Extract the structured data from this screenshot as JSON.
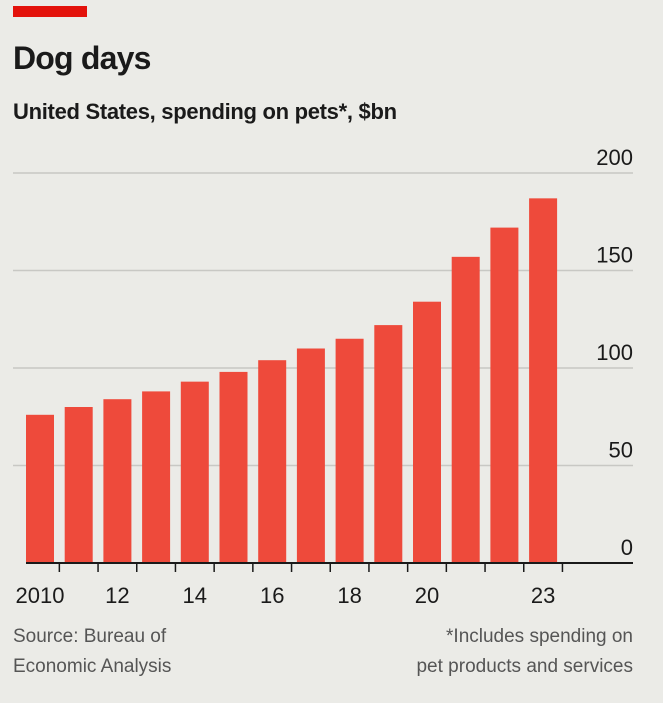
{
  "header": {
    "title": "Dog days",
    "subtitle": "United States, spending on pets*, $bn"
  },
  "chart_data": {
    "type": "bar",
    "categories": [
      "2010",
      "2011",
      "2012",
      "2013",
      "2014",
      "2015",
      "2016",
      "2017",
      "2018",
      "2019",
      "2020",
      "2021",
      "2022",
      "2023"
    ],
    "tick_labels": [
      "2010",
      "",
      "12",
      "",
      "14",
      "",
      "16",
      "",
      "18",
      "",
      "20",
      "",
      "",
      "23"
    ],
    "values": [
      76,
      80,
      84,
      88,
      93,
      98,
      104,
      110,
      115,
      122,
      134,
      157,
      172,
      187
    ],
    "ylim": [
      0,
      200
    ],
    "yticks": [
      "0",
      "50",
      "100",
      "150",
      "200"
    ],
    "grid": true,
    "bar_color": "#ee4a3b"
  },
  "footer": {
    "source_line1": "Source: Bureau of",
    "source_line2": "Economic Analysis",
    "note_line1": "*Includes spending on",
    "note_line2": "pet products and services"
  },
  "colors": {
    "accent": "#e3120b",
    "background": "#ebebe7",
    "gridline": "#c8c8c4",
    "axis": "#1a1a1a"
  }
}
